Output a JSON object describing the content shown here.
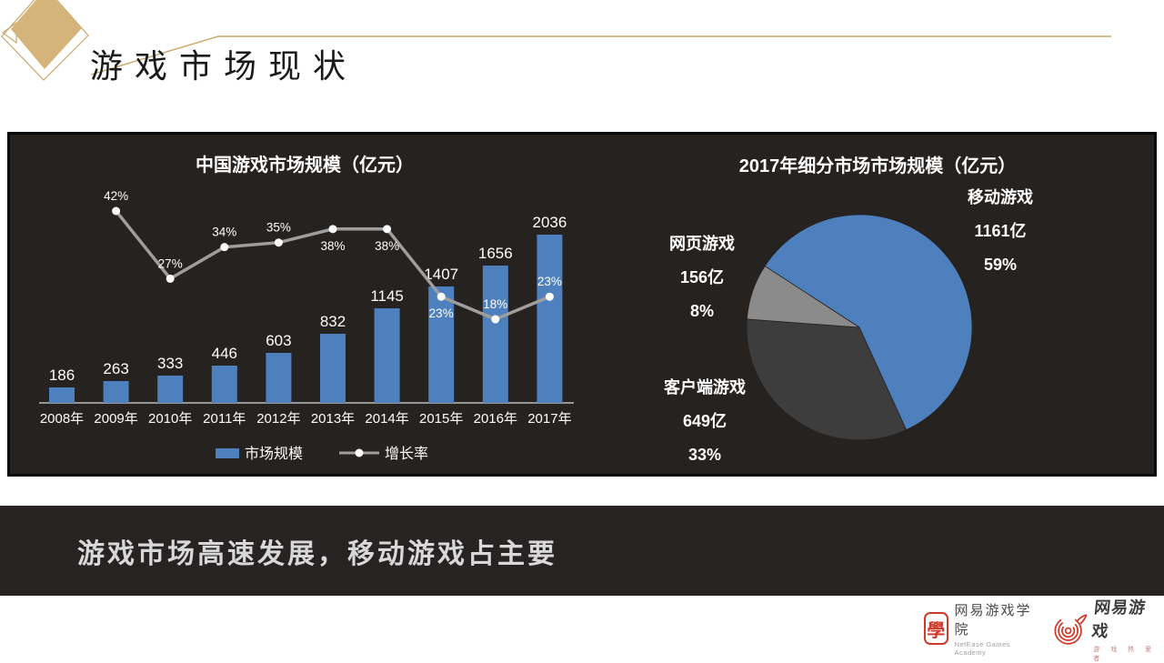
{
  "slide": {
    "title": "游戏市场现状",
    "banner_text": "游戏市场高速发展，移动游戏占主要"
  },
  "colors": {
    "accent_gold_line": "#C9A76B",
    "diamond_fill": "#D4B47A",
    "panel_background": "#252220",
    "banner_background": "#262322",
    "banner_text": "#D8D8D8",
    "bar_blue": "#4E80BD",
    "line_gray": "#9E9E9E",
    "pie_blue": "#4E80BD",
    "pie_dark_gray": "#3D3D3D",
    "pie_light_gray": "#8B8B8B",
    "logo_red": "#CF3A2A"
  },
  "chart_data": [
    {
      "type": "bar",
      "subtype": "bar-line-combo",
      "title": "中国游戏市场规模（亿元）",
      "categories": [
        "2008年",
        "2009年",
        "2010年",
        "2011年",
        "2012年",
        "2013年",
        "2014年",
        "2015年",
        "2016年",
        "2017年"
      ],
      "series": [
        {
          "name": "市场规模",
          "type": "bar",
          "color": "#4E80BD",
          "values": [
            186,
            263,
            333,
            446,
            603,
            832,
            1145,
            1407,
            1656,
            2036
          ]
        },
        {
          "name": "增长率",
          "type": "line",
          "color": "#9E9E9E",
          "values": [
            null,
            42,
            27,
            34,
            35,
            38,
            38,
            23,
            18,
            23
          ],
          "point_labels": [
            "",
            "42%",
            "27%",
            "34%",
            "35%",
            "38%",
            "38%",
            "23%",
            "18%",
            "23%"
          ],
          "label_side": [
            "",
            "above",
            "above",
            "above",
            "above",
            "below",
            "below",
            "below",
            "above",
            "above"
          ]
        }
      ],
      "ylim_bar": [
        0,
        2200
      ],
      "ylim_line_percent": [
        0,
        50
      ],
      "legend_position": "bottom",
      "grid": false
    },
    {
      "type": "pie",
      "title": "2017年细分市场市场规模（亿元）",
      "start_angle_deg": -57,
      "slices": [
        {
          "label": "移动游戏",
          "amount": "1161亿",
          "percent": "59%",
          "value": 59,
          "color": "#4E80BD"
        },
        {
          "label": "客户端游戏",
          "amount": "649亿",
          "percent": "33%",
          "value": 33,
          "color": "#3D3D3D"
        },
        {
          "label": "网页游戏",
          "amount": "156亿",
          "percent": "8%",
          "value": 8,
          "color": "#8B8B8B"
        }
      ]
    }
  ],
  "footer": {
    "academy": {
      "seal_char": "學",
      "name": "网易游戏学院",
      "subtitle": "NetEase Games Academy"
    },
    "games": {
      "name": "网易游戏",
      "subtitle": "游 戏 热 爱 者"
    }
  }
}
